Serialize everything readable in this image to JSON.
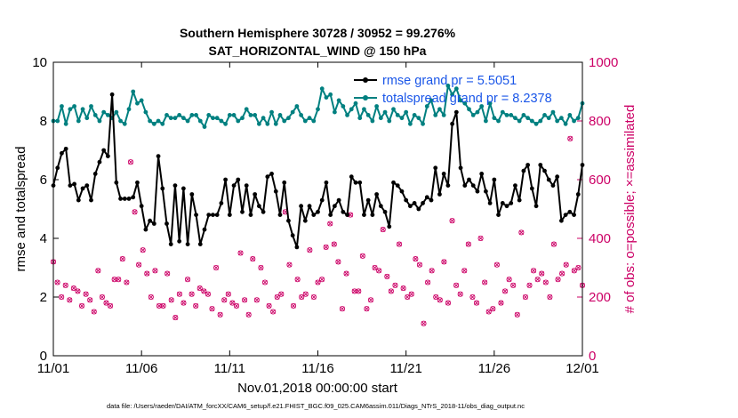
{
  "chart_data": {
    "type": "line",
    "title": "Southern Hemisphere 30728 / 30952 = 99.276%",
    "subtitle": "SAT_HORIZONTAL_WIND @ 150 hPa",
    "xlabel": "Nov.01,2018 00:00:00 start",
    "ylabel": "rmse and totalspread",
    "y2label": "# of obs: o=possible; ×=assimilated",
    "footnote": "data file: /Users/raeder/DAI/ATM_forcXX/CAM6_setup/f.e21.FHIST_BGC.f09_025.CAM6assim.011/Diags_NTrS_2018-11/obs_diag_output.nc",
    "x_ticks": [
      "11/01",
      "11/06",
      "11/11",
      "11/16",
      "11/21",
      "11/26",
      "12/01"
    ],
    "x_tick_days": [
      0,
      5,
      10,
      15,
      20,
      25,
      30
    ],
    "xlim": [
      0,
      30
    ],
    "ylim": [
      0,
      10
    ],
    "y_ticks": [
      "0",
      "2",
      "4",
      "6",
      "8",
      "10"
    ],
    "y2lim": [
      0,
      1000
    ],
    "y2_ticks": [
      "0",
      "200",
      "400",
      "600",
      "800",
      "1000"
    ],
    "legend": [
      "rmse grand pr = 5.5051",
      "totalspread grand pr = 8.2378"
    ],
    "colors": {
      "rmse": "#000000",
      "spread": "#008080",
      "obs": "#cc0066"
    },
    "series": [
      {
        "name": "rmse",
        "axis": "left",
        "values": [
          5.8,
          6.4,
          6.9,
          7.05,
          5.8,
          5.85,
          5.3,
          5.7,
          5.8,
          5.3,
          6.2,
          6.6,
          7.0,
          6.8,
          8.9,
          5.9,
          5.35,
          5.35,
          5.35,
          5.4,
          5.9,
          5.1,
          4.3,
          4.6,
          4.5,
          6.8,
          5.7,
          4.5,
          3.8,
          5.8,
          3.9,
          5.7,
          3.8,
          5.5,
          4.8,
          3.8,
          4.3,
          4.8,
          4.8,
          4.8,
          5.2,
          6.0,
          4.8,
          5.8,
          6.0,
          4.9,
          5.8,
          4.8,
          5.5,
          5.1,
          4.9,
          6.1,
          6.2,
          5.6,
          4.8,
          5.9,
          4.6,
          4.1,
          3.7,
          5.1,
          4.6,
          5.1,
          4.8,
          4.9,
          5.3,
          5.9,
          4.8,
          5.1,
          5.3,
          4.9,
          4.8,
          6.1,
          5.9,
          5.9,
          4.8,
          5.3,
          4.8,
          5.5,
          5.1,
          4.9,
          4.4,
          5.9,
          5.8,
          5.6,
          5.3,
          5.1,
          5.2,
          5.0,
          5.2,
          5.4,
          5.3,
          6.4,
          5.5,
          6.2,
          5.8,
          7.9,
          8.3,
          6.4,
          5.8,
          6.0,
          5.8,
          5.6,
          6.2,
          5.6,
          5.2,
          6.0,
          4.8,
          5.2,
          5.1,
          5.2,
          5.8,
          5.3,
          6.3,
          6.5,
          5.7,
          5.1,
          6.5,
          6.3,
          6.0,
          5.8,
          6.1,
          4.6,
          4.8,
          4.9,
          4.8,
          5.5,
          6.5
        ]
      },
      {
        "name": "totalspread",
        "axis": "left",
        "values": [
          8.0,
          8.0,
          8.5,
          7.9,
          8.4,
          8.5,
          8.0,
          8.4,
          8.1,
          8.5,
          8.2,
          8.0,
          8.3,
          8.2,
          8.1,
          8.3,
          8.0,
          7.9,
          8.4,
          9.0,
          8.6,
          8.7,
          8.3,
          8.0,
          7.9,
          8.0,
          7.9,
          8.2,
          8.1,
          8.1,
          8.2,
          8.1,
          8.0,
          8.2,
          8.2,
          8.0,
          7.8,
          8.2,
          8.1,
          8.1,
          8.0,
          7.9,
          8.2,
          8.2,
          8.0,
          8.1,
          8.4,
          8.2,
          8.2,
          7.9,
          8.1,
          7.9,
          8.3,
          7.9,
          8.2,
          8.0,
          8.1,
          8.3,
          8.5,
          8.2,
          8.0,
          8.1,
          8.0,
          8.4,
          9.1,
          8.8,
          8.9,
          8.3,
          8.7,
          8.5,
          8.2,
          8.4,
          8.6,
          8.1,
          8.4,
          8.2,
          8.0,
          8.5,
          8.1,
          8.3,
          8.0,
          8.4,
          8.2,
          8.1,
          8.3,
          7.9,
          8.2,
          8.1,
          7.9,
          8.5,
          8.7,
          8.2,
          8.4,
          8.2,
          9.2,
          8.9,
          9.1,
          8.7,
          8.6,
          8.4,
          8.2,
          8.3,
          8.5,
          8.0,
          8.6,
          8.1,
          8.0,
          8.3,
          8.2,
          8.2,
          8.1,
          8.0,
          8.2,
          8.1,
          8.0,
          7.9,
          8.0,
          8.2,
          8.1,
          8.3,
          8.0,
          8.1,
          7.9,
          8.2,
          8.0,
          8.1,
          8.6
        ]
      },
      {
        "name": "obs_possible",
        "axis": "right",
        "values": [
          320,
          250,
          200,
          240,
          190,
          230,
          220,
          170,
          210,
          190,
          150,
          290,
          200,
          180,
          170,
          260,
          260,
          330,
          250,
          660,
          490,
          310,
          360,
          280,
          200,
          290,
          170,
          170,
          280,
          190,
          130,
          210,
          180,
          260,
          210,
          170,
          230,
          220,
          210,
          160,
          300,
          140,
          190,
          210,
          180,
          170,
          350,
          190,
          140,
          330,
          190,
          300,
          250,
          170,
          150,
          200,
          210,
          490,
          310,
          170,
          260,
          200,
          210,
          360,
          200,
          250,
          260,
          370,
          450,
          380,
          320,
          160,
          280,
          480,
          220,
          220,
          340,
          160,
          190,
          300,
          290,
          430,
          270,
          220,
          240,
          380,
          230,
          200,
          210,
          330,
          310,
          110,
          250,
          290,
          200,
          190,
          320,
          180,
          460,
          240,
          210,
          290,
          380,
          200,
          180,
          400,
          250,
          150,
          160,
          310,
          180,
          220,
          260,
          240,
          140,
          420,
          200,
          240,
          290,
          260,
          280,
          250,
          200,
          380,
          260,
          280,
          310,
          740,
          290,
          300,
          240
        ]
      },
      {
        "name": "obs_assimilated",
        "axis": "right",
        "values": [
          320,
          250,
          200,
          240,
          190,
          230,
          220,
          170,
          210,
          190,
          150,
          290,
          200,
          180,
          170,
          260,
          260,
          330,
          250,
          660,
          490,
          310,
          360,
          280,
          200,
          290,
          170,
          170,
          280,
          190,
          130,
          210,
          180,
          260,
          210,
          170,
          230,
          220,
          210,
          160,
          300,
          140,
          190,
          210,
          180,
          170,
          350,
          190,
          140,
          330,
          190,
          300,
          250,
          170,
          150,
          200,
          210,
          490,
          310,
          170,
          260,
          200,
          210,
          360,
          200,
          250,
          260,
          370,
          450,
          380,
          320,
          160,
          280,
          480,
          220,
          220,
          340,
          160,
          190,
          300,
          290,
          430,
          270,
          220,
          240,
          380,
          230,
          200,
          210,
          330,
          310,
          110,
          250,
          290,
          200,
          190,
          320,
          180,
          460,
          240,
          210,
          290,
          380,
          200,
          180,
          400,
          250,
          150,
          160,
          310,
          180,
          220,
          260,
          240,
          140,
          420,
          200,
          240,
          290,
          260,
          280,
          250,
          200,
          380,
          260,
          280,
          310,
          740,
          290,
          300,
          240
        ]
      }
    ]
  }
}
